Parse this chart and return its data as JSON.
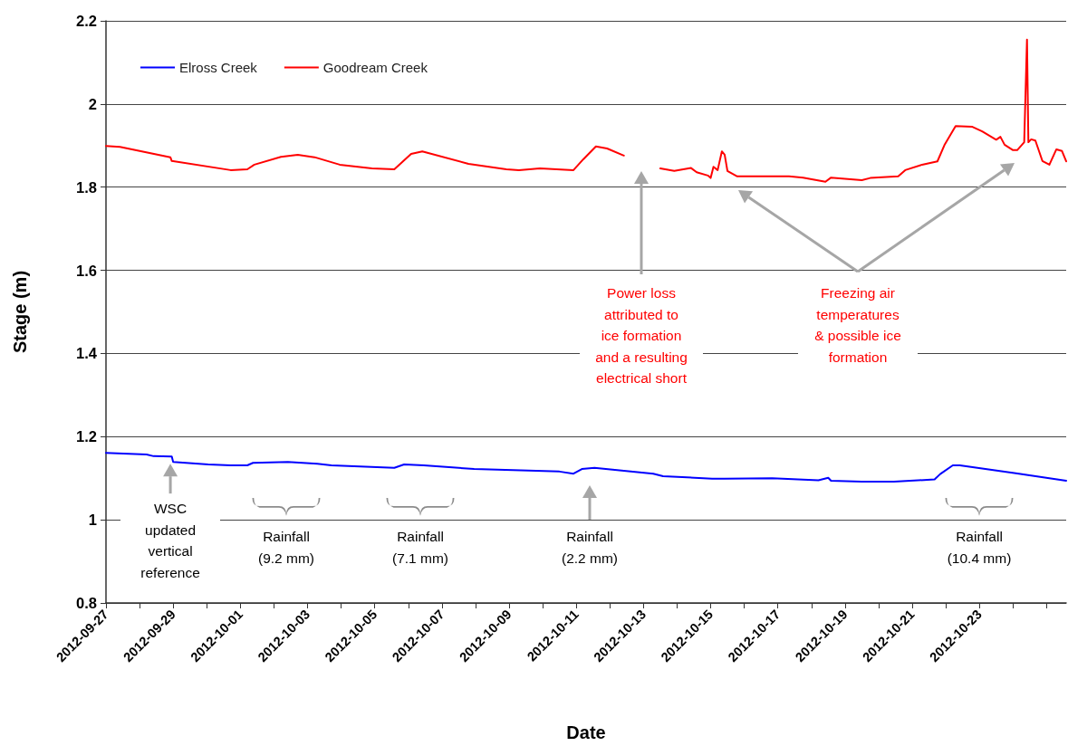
{
  "chart_data": {
    "type": "line",
    "xlabel": "Date",
    "ylabel": "Stage (m)",
    "xlim": [
      "2012-09-27",
      "2012-10-25T14:00"
    ],
    "xticks": [
      "2012-09-27",
      {
        "value": "2012-09-28",
        "label": null
      },
      "2012-09-29",
      {
        "value": "2012-09-30",
        "label": null
      },
      "2012-10-01",
      {
        "value": "2012-10-02",
        "label": null
      },
      "2012-10-03",
      {
        "value": "2012-10-04",
        "label": null
      },
      "2012-10-05",
      {
        "value": "2012-10-06",
        "label": null
      },
      "2012-10-07",
      {
        "value": "2012-10-08",
        "label": null
      },
      "2012-10-09",
      {
        "value": "2012-10-10",
        "label": null
      },
      "2012-10-11",
      {
        "value": "2012-10-12",
        "label": null
      },
      "2012-10-13",
      {
        "value": "2012-10-14",
        "label": null
      },
      "2012-10-15",
      {
        "value": "2012-10-16",
        "label": null
      },
      "2012-10-17",
      {
        "value": "2012-10-18",
        "label": null
      },
      "2012-10-19",
      {
        "value": "2012-10-20",
        "label": null
      },
      "2012-10-21",
      {
        "value": "2012-10-22",
        "label": null
      },
      "2012-10-23",
      {
        "value": "2012-10-24",
        "label": null
      },
      {
        "value": "2012-10-25",
        "label": null
      }
    ],
    "ylim": [
      0.8,
      2.2
    ],
    "yticks": [
      0.8,
      1,
      1.2,
      1.4,
      1.6,
      1.8,
      2,
      2.2
    ],
    "grid": "y",
    "legend": "top left",
    "marker": "none",
    "line_style": "solid",
    "series": [
      {
        "name": "Elross Creek",
        "color": "#0000ff",
        "x": [
          "2012-09-27T00:00",
          "2012-09-28T05:00",
          "2012-09-28T10:00",
          "2012-09-28T23:00",
          "2012-09-29T00:00",
          "2012-09-30T01:00",
          "2012-09-30T17:00",
          "2012-10-01T05:00",
          "2012-10-01T09:00",
          "2012-10-02T10:00",
          "2012-10-03T07:00",
          "2012-10-03T17:00",
          "2012-10-05T14:00",
          "2012-10-05T21:00",
          "2012-10-06T11:00",
          "2012-10-07T23:00",
          "2012-10-10T12:00",
          "2012-10-10T22:00",
          "2012-10-11T04:00",
          "2012-10-11T13:00",
          "2012-10-13T07:00",
          "2012-10-13T14:00",
          "2012-10-15T01:00",
          "2012-10-15T10:00",
          "2012-10-16T20:00",
          "2012-10-18T05:00",
          "2012-10-18T12:00",
          "2012-10-18T14:00",
          "2012-10-19T12:00",
          "2012-10-20T11:00",
          "2012-10-21T16:00",
          "2012-10-21T20:00",
          "2012-10-22T05:00",
          "2012-10-22T10:00",
          "2012-10-24T02:00",
          "2012-10-25T14:00"
        ],
        "values": [
          1.161,
          1.157,
          1.153,
          1.152,
          1.139,
          1.133,
          1.131,
          1.131,
          1.137,
          1.139,
          1.135,
          1.131,
          1.125,
          1.133,
          1.131,
          1.122,
          1.116,
          1.111,
          1.122,
          1.125,
          1.111,
          1.105,
          1.099,
          1.099,
          1.1,
          1.095,
          1.101,
          1.094,
          1.092,
          1.092,
          1.097,
          1.11,
          1.131,
          1.131,
          1.112,
          1.094
        ]
      },
      {
        "name": "Goodream Creek",
        "color": "#ff0000",
        "x": [
          "2012-09-27T00:00",
          "2012-09-27T10:00",
          "2012-09-28T22:00",
          "2012-09-28T23:00",
          "2012-09-30T17:00",
          "2012-10-01T05:00",
          "2012-10-01T10:00",
          "2012-10-02T05:00",
          "2012-10-02T17:00",
          "2012-10-03T05:00",
          "2012-10-03T23:00",
          "2012-10-04T22:00",
          "2012-10-05T14:00",
          "2012-10-06T02:00",
          "2012-10-06T10:00",
          "2012-10-07T19:00",
          "2012-10-08T22:00",
          "2012-10-09T07:00",
          "2012-10-09T22:00",
          "2012-10-10T22:00",
          "2012-10-11T05:00",
          "2012-10-11T14:00",
          "2012-10-11T22:00",
          "2012-10-12T10:00",
          "2012-10-13T00:00",
          "2012-10-13T12:00",
          "2012-10-13T22:00",
          "2012-10-14T10:00",
          "2012-10-14T14:00",
          "2012-10-14T22:00",
          "2012-10-15T00:00",
          "2012-10-15T02:00",
          "2012-10-15T05:00",
          "2012-10-15T08:00",
          "2012-10-15T10:00",
          "2012-10-15T12:00",
          "2012-10-15T19:00",
          "2012-10-17T08:00",
          "2012-10-17T18:00",
          "2012-10-18T10:00",
          "2012-10-18T14:00",
          "2012-10-19T12:00",
          "2012-10-19T18:00",
          "2012-10-20T14:00",
          "2012-10-20T19:00",
          "2012-10-21T07:00",
          "2012-10-21T18:00",
          "2012-10-21T23:00",
          "2012-10-22T07:00",
          "2012-10-22T19:00",
          "2012-10-23T02:00",
          "2012-10-23T12:00",
          "2012-10-23T15:00",
          "2012-10-23T18:00",
          "2012-10-24T00:00",
          "2012-10-24T03:00",
          "2012-10-24T08:00",
          "2012-10-24T10:00",
          "2012-10-24T11:00",
          "2012-10-24T13:00",
          "2012-10-24T16:00",
          "2012-10-24T21:00",
          "2012-10-25T02:00",
          "2012-10-25T07:00",
          "2012-10-25T11:00",
          "2012-10-25T14:00"
        ],
        "values": [
          1.899,
          1.897,
          1.872,
          1.863,
          1.841,
          1.843,
          1.854,
          1.873,
          1.878,
          1.872,
          1.854,
          1.845,
          1.843,
          1.88,
          1.886,
          1.856,
          1.843,
          1.841,
          1.845,
          1.841,
          1.867,
          1.898,
          1.893,
          1.876,
          null,
          1.845,
          1.839,
          1.846,
          1.836,
          1.828,
          1.822,
          1.849,
          1.841,
          1.886,
          1.878,
          1.839,
          1.826,
          1.826,
          1.823,
          1.813,
          1.823,
          1.817,
          1.822,
          1.826,
          1.841,
          1.854,
          1.862,
          1.901,
          1.947,
          1.945,
          1.934,
          1.914,
          1.921,
          1.902,
          1.889,
          1.889,
          1.908,
          2.155,
          1.908,
          1.915,
          1.912,
          1.863,
          1.854,
          1.891,
          1.887,
          1.862
        ]
      }
    ],
    "annotations": [
      {
        "text": "WSC updated vertical reference",
        "x": "2012-09-28T22:00",
        "y": 1.135
      },
      "Rainfall (9.2 mm)",
      "Rainfall (7.1 mm)",
      "Rainfall (2.2 mm)",
      "Rainfall (10.4 mm)",
      "Power loss attributed to ice formation and a resulting electrical short",
      "Freezing air temperatures & possible ice formation"
    ]
  }
}
